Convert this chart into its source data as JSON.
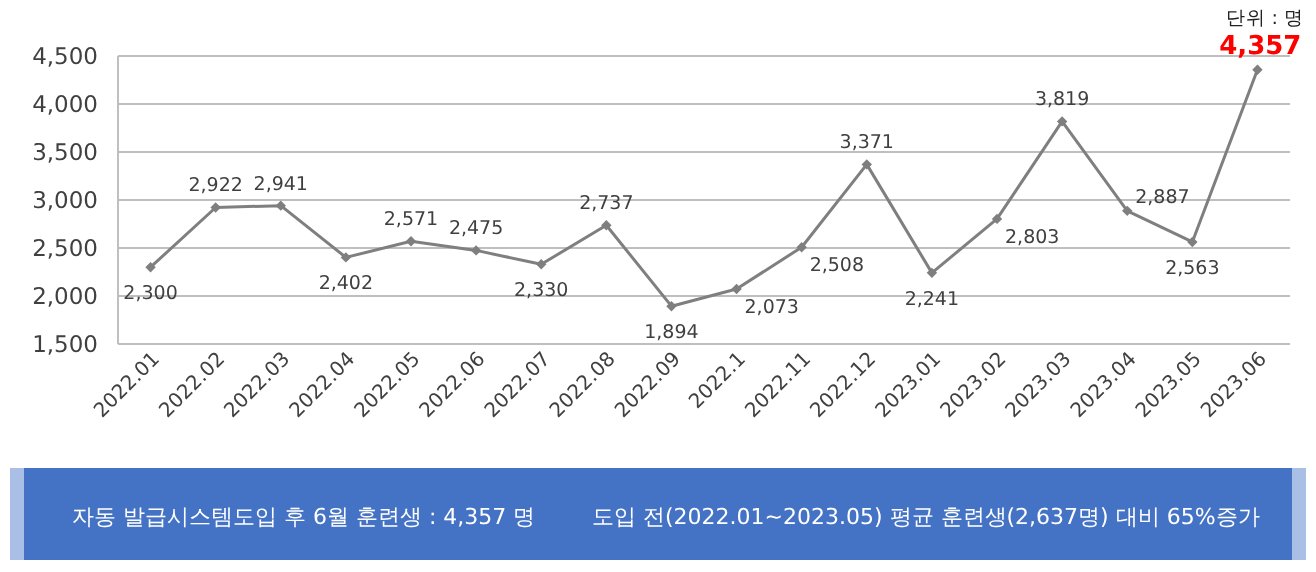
{
  "chart_data": {
    "type": "line",
    "categories": [
      "2022.01",
      "2022.02",
      "2022.03",
      "2022.04",
      "2022.05",
      "2022.06",
      "2022.07",
      "2022.08",
      "2022.09",
      "2022.1",
      "2022.11",
      "2022.12",
      "2023.01",
      "2023.02",
      "2023.03",
      "2023.04",
      "2023.05",
      "2023.06"
    ],
    "values": [
      2300,
      2922,
      2941,
      2402,
      2571,
      2475,
      2330,
      2737,
      1894,
      2073,
      2508,
      3371,
      2241,
      2803,
      3819,
      2887,
      2563,
      4357
    ],
    "value_labels": [
      "2,300",
      "2,922",
      "2,941",
      "2,402",
      "2,571",
      "2,475",
      "2,330",
      "2,737",
      "1,894",
      "2,073",
      "2,508",
      "3,371",
      "2,241",
      "2,803",
      "3,819",
      "2,887",
      "2,563",
      null
    ],
    "color": "#7f7f7f",
    "marker": "diamond",
    "grid": "y",
    "ylim": [
      1500,
      4500
    ],
    "yticks": [
      {
        "value": 1500,
        "label": "1,500"
      },
      {
        "value": 2000,
        "label": "2,000"
      },
      {
        "value": 2500,
        "label": "2,500"
      },
      {
        "value": 3000,
        "label": "3,000"
      },
      {
        "value": 3500,
        "label": "3,500"
      },
      {
        "value": 4000,
        "label": "4,000"
      },
      {
        "value": 4500,
        "label": "4,500"
      }
    ],
    "annotations": [
      "단위 : 명",
      {
        "text": "4,357",
        "x": "2023.06",
        "y": 4357
      },
      "자동 발급시스템도입 후 6월 훈련생 : 4,357 명",
      "도입 전(2022.01~2023.05) 평균 훈련생(2,637명) 대비 65%증가"
    ]
  }
}
